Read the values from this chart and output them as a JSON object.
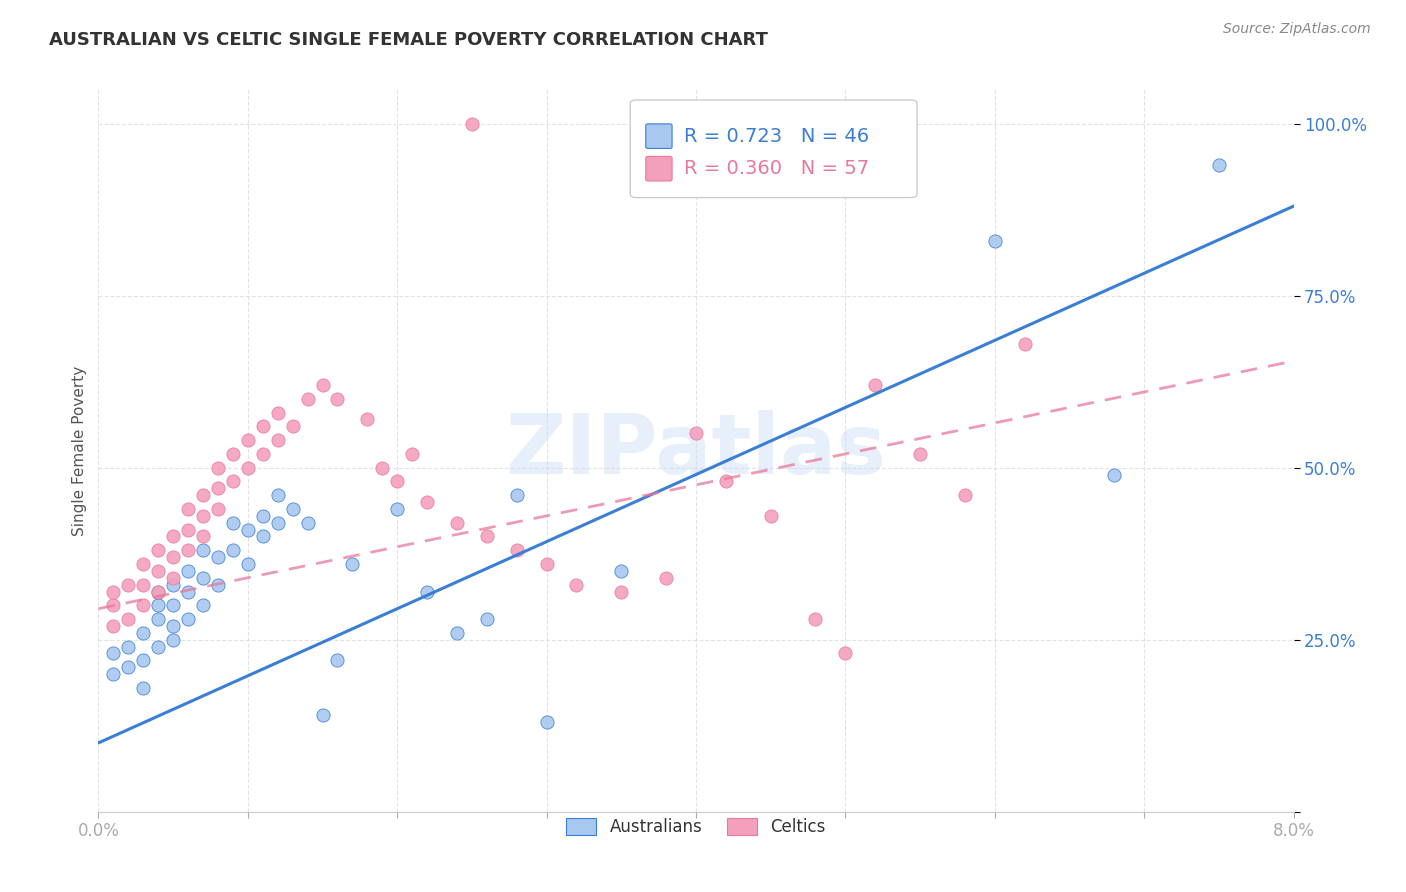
{
  "title": "AUSTRALIAN VS CELTIC SINGLE FEMALE POVERTY CORRELATION CHART",
  "source": "Source: ZipAtlas.com",
  "ylabel_text": "Single Female Poverty",
  "x_min": 0.0,
  "x_max": 0.08,
  "y_min": 0.0,
  "y_max": 1.05,
  "legend_R": [
    "0.723",
    "0.360"
  ],
  "legend_N": [
    "46",
    "57"
  ],
  "australian_color": "#a8c8f0",
  "celtic_color": "#f4a0bc",
  "trendline_aus_color": "#3a7fd5",
  "trendline_cel_color": "#e8799a",
  "watermark": "ZIPatlas",
  "background_color": "#ffffff",
  "grid_color": "#dddddd",
  "aus_points_x": [
    0.001,
    0.001,
    0.002,
    0.002,
    0.003,
    0.003,
    0.003,
    0.004,
    0.004,
    0.004,
    0.004,
    0.005,
    0.005,
    0.005,
    0.005,
    0.006,
    0.006,
    0.006,
    0.007,
    0.007,
    0.007,
    0.008,
    0.008,
    0.009,
    0.009,
    0.01,
    0.01,
    0.011,
    0.011,
    0.012,
    0.012,
    0.013,
    0.014,
    0.015,
    0.016,
    0.017,
    0.02,
    0.022,
    0.024,
    0.026,
    0.028,
    0.03,
    0.035,
    0.06,
    0.068,
    0.075
  ],
  "aus_points_y": [
    0.2,
    0.23,
    0.21,
    0.24,
    0.18,
    0.22,
    0.26,
    0.24,
    0.28,
    0.3,
    0.32,
    0.25,
    0.27,
    0.3,
    0.33,
    0.28,
    0.32,
    0.35,
    0.3,
    0.34,
    0.38,
    0.33,
    0.37,
    0.38,
    0.42,
    0.36,
    0.41,
    0.4,
    0.43,
    0.42,
    0.46,
    0.44,
    0.42,
    0.14,
    0.22,
    0.36,
    0.44,
    0.32,
    0.26,
    0.28,
    0.46,
    0.13,
    0.35,
    0.83,
    0.49,
    0.94
  ],
  "cel_points_x": [
    0.001,
    0.001,
    0.001,
    0.002,
    0.002,
    0.003,
    0.003,
    0.003,
    0.004,
    0.004,
    0.004,
    0.005,
    0.005,
    0.005,
    0.006,
    0.006,
    0.006,
    0.007,
    0.007,
    0.007,
    0.008,
    0.008,
    0.008,
    0.009,
    0.009,
    0.01,
    0.01,
    0.011,
    0.011,
    0.012,
    0.012,
    0.013,
    0.014,
    0.015,
    0.016,
    0.018,
    0.019,
    0.02,
    0.021,
    0.022,
    0.024,
    0.026,
    0.028,
    0.03,
    0.032,
    0.035,
    0.038,
    0.04,
    0.042,
    0.045,
    0.048,
    0.05,
    0.052,
    0.055,
    0.058,
    0.062,
    0.025
  ],
  "cel_points_y": [
    0.27,
    0.3,
    0.32,
    0.28,
    0.33,
    0.3,
    0.33,
    0.36,
    0.32,
    0.35,
    0.38,
    0.34,
    0.37,
    0.4,
    0.38,
    0.41,
    0.44,
    0.4,
    0.43,
    0.46,
    0.44,
    0.47,
    0.5,
    0.48,
    0.52,
    0.5,
    0.54,
    0.52,
    0.56,
    0.54,
    0.58,
    0.56,
    0.6,
    0.62,
    0.6,
    0.57,
    0.5,
    0.48,
    0.52,
    0.45,
    0.42,
    0.4,
    0.38,
    0.36,
    0.33,
    0.32,
    0.34,
    0.55,
    0.48,
    0.43,
    0.28,
    0.23,
    0.62,
    0.52,
    0.46,
    0.68,
    1.0
  ],
  "aus_trend_x0": 0.0,
  "aus_trend_y0": 0.1,
  "aus_trend_x1": 0.08,
  "aus_trend_y1": 0.88,
  "cel_trend_x0": 0.0,
  "cel_trend_y0": 0.295,
  "cel_trend_x1": 0.08,
  "cel_trend_y1": 0.655
}
